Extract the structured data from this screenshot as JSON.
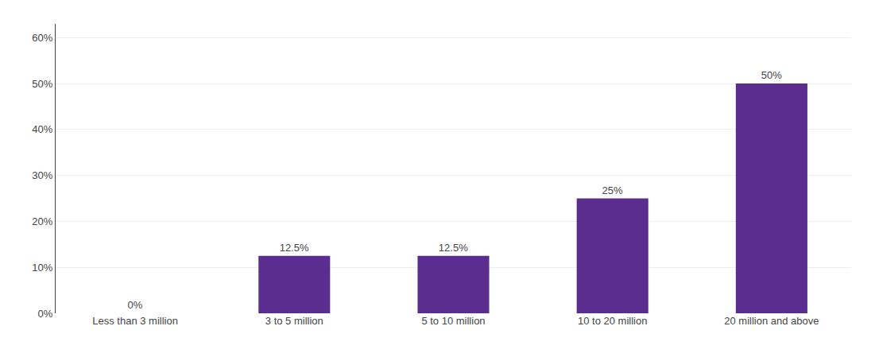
{
  "chart_data": {
    "type": "bar",
    "categories": [
      "Less than 3 million",
      "3 to 5 million",
      "5 to 10 million",
      "10 to 20 million",
      "20 million and above"
    ],
    "values": [
      0,
      12.5,
      12.5,
      25,
      50
    ],
    "value_labels": [
      "0%",
      "12.5%",
      "12.5%",
      "25%",
      "50%"
    ],
    "data_labels": true,
    "color": "#5B2D8E",
    "ylim": [
      0,
      63
    ],
    "yticks": [
      {
        "value": 0,
        "label": "0%"
      },
      {
        "value": 10,
        "label": "10%"
      },
      {
        "value": 20,
        "label": "20%"
      },
      {
        "value": 30,
        "label": "30%"
      },
      {
        "value": 40,
        "label": "40%"
      },
      {
        "value": 50,
        "label": "50%"
      },
      {
        "value": 60,
        "label": "60%"
      }
    ],
    "grid": true
  }
}
